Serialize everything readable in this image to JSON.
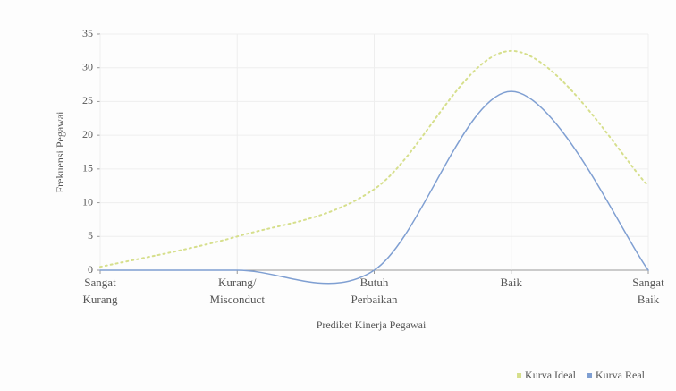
{
  "chart_data": {
    "type": "line",
    "categories": [
      "Sangat Kurang",
      "Kurang/ Misconduct",
      "Butuh Perbaikan",
      "Baik",
      "Sangat Baik"
    ],
    "series": [
      {
        "name": "Kurva Ideal",
        "color": "#d6df8c",
        "values": [
          0.5,
          5,
          12,
          32.5,
          12.5
        ]
      },
      {
        "name": "Kurva Real",
        "color": "#7f9fd2",
        "values": [
          0,
          0,
          0,
          26.5,
          0
        ]
      }
    ],
    "x_label": "Prediket Kinerja Pegawai",
    "y_label": "Frekuensi Pegawai",
    "ylim": [
      0,
      35
    ],
    "yticks": [
      0,
      5,
      10,
      15,
      20,
      25,
      30,
      35
    ],
    "grid": true,
    "smooth": true,
    "legend": "bottom-right"
  }
}
